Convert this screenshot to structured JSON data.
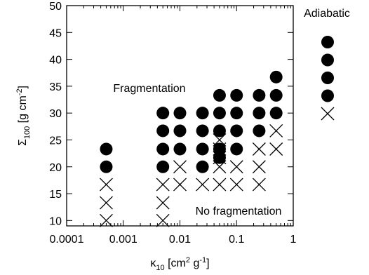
{
  "chart_data": {
    "type": "scatter",
    "xlabel": {
      "base": "κ",
      "sub": "10",
      "rest1": " [cm",
      "sup1": "2",
      "rest2": " g",
      "sup2": "-1",
      "rest3": "]"
    },
    "ylabel": {
      "base": "Σ",
      "sub": "100",
      "rest1": " [g cm",
      "sup1": "-2",
      "rest2": "]"
    },
    "x_scale": "log",
    "xlim": [
      0.0001,
      1
    ],
    "ylim": [
      9,
      50
    ],
    "x_ticks": [
      0.0001,
      0.001,
      0.01,
      0.1,
      1
    ],
    "x_tick_labels": [
      "0.0001",
      "0.001",
      "0.01",
      "0.1",
      "1"
    ],
    "y_ticks": [
      10,
      15,
      20,
      25,
      30,
      35,
      40,
      45,
      50
    ],
    "y_tick_labels": [
      "10",
      "15",
      "20",
      "25",
      "30",
      "35",
      "40",
      "45",
      "50"
    ],
    "annotations": [
      "Fragmentation",
      "No fragmentation"
    ],
    "series": [
      {
        "marker": "filled-circle",
        "points": [
          [
            0.0005,
            20
          ],
          [
            0.0005,
            23.3
          ],
          [
            0.005,
            20
          ],
          [
            0.005,
            23.3
          ],
          [
            0.005,
            26.7
          ],
          [
            0.005,
            30
          ],
          [
            0.01,
            23.3
          ],
          [
            0.01,
            26.7
          ],
          [
            0.01,
            30
          ],
          [
            0.025,
            20
          ],
          [
            0.025,
            23.3
          ],
          [
            0.025,
            26.7
          ],
          [
            0.025,
            30
          ],
          [
            0.05,
            21.7
          ],
          [
            0.05,
            23.3
          ],
          [
            0.05,
            26.7
          ],
          [
            0.05,
            30
          ],
          [
            0.05,
            33.3
          ],
          [
            0.1,
            23.3
          ],
          [
            0.1,
            26.7
          ],
          [
            0.1,
            30
          ],
          [
            0.1,
            33.3
          ],
          [
            0.25,
            26.7
          ],
          [
            0.25,
            30
          ],
          [
            0.25,
            33.3
          ],
          [
            0.5,
            30
          ],
          [
            0.5,
            33.3
          ],
          [
            0.5,
            36.7
          ]
        ]
      },
      {
        "marker": "cross",
        "points": [
          [
            0.0005,
            10
          ],
          [
            0.0005,
            13.3
          ],
          [
            0.0005,
            16.7
          ],
          [
            0.005,
            10
          ],
          [
            0.005,
            13.3
          ],
          [
            0.005,
            16.7
          ],
          [
            0.01,
            16.7
          ],
          [
            0.01,
            20
          ],
          [
            0.025,
            16.7
          ],
          [
            0.05,
            16.7
          ],
          [
            0.05,
            20
          ],
          [
            0.05,
            21.7
          ],
          [
            0.05,
            23.3
          ],
          [
            0.05,
            25
          ],
          [
            0.1,
            16.7
          ],
          [
            0.1,
            20
          ],
          [
            0.25,
            16.7
          ],
          [
            0.25,
            20
          ],
          [
            0.25,
            23.3
          ],
          [
            0.5,
            23.3
          ],
          [
            0.5,
            26.7
          ]
        ]
      }
    ],
    "side_panel": {
      "label": "Adiabatic",
      "markers": [
        "filled-circle",
        "filled-circle",
        "filled-circle",
        "filled-circle",
        "cross"
      ]
    }
  }
}
